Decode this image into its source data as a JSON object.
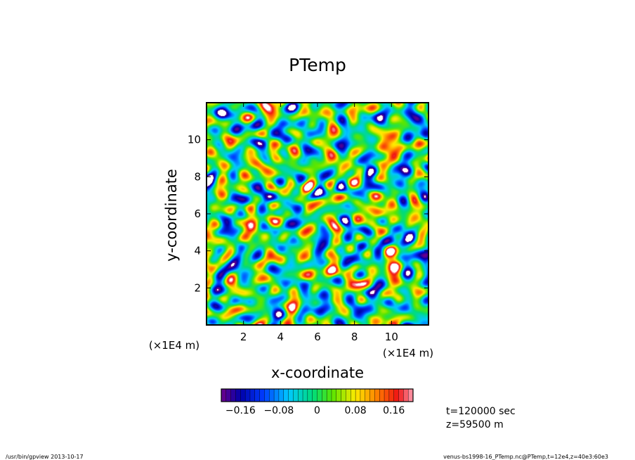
{
  "chart_data": {
    "type": "heatmap",
    "title": "PTemp",
    "xlabel": "x-coordinate",
    "ylabel": "y-coordinate",
    "x_unit": "(×1E4 m)",
    "y_unit": "(×1E4 m)",
    "xlim": [
      0,
      12
    ],
    "ylim": [
      0,
      12
    ],
    "x_ticks": [
      2,
      4,
      6,
      8,
      10
    ],
    "y_ticks": [
      2,
      4,
      6,
      8,
      10
    ],
    "x_tick_labels": [
      "2",
      "4",
      "6",
      "8",
      "10"
    ],
    "y_tick_labels": [
      "2",
      "4",
      "6",
      "8",
      "10"
    ],
    "field_range": [
      -0.2,
      0.2
    ],
    "colorbar": {
      "min": -0.2,
      "max": 0.2,
      "steps": 40,
      "tick_values": [
        -0.16,
        -0.08,
        0,
        0.08,
        0.16
      ],
      "tick_labels": [
        "−0.16",
        "−0.08",
        "0",
        "0.08",
        "0.16"
      ]
    },
    "grid": false,
    "info": [
      "t=120000 sec",
      "z=59500 m"
    ]
  },
  "footer": {
    "left": "/usr/bin/gpview   2013-10-17",
    "right": "venus-bs1998-16_PTemp.nc@PTemp,t=12e4,z=40e3:60e3"
  }
}
